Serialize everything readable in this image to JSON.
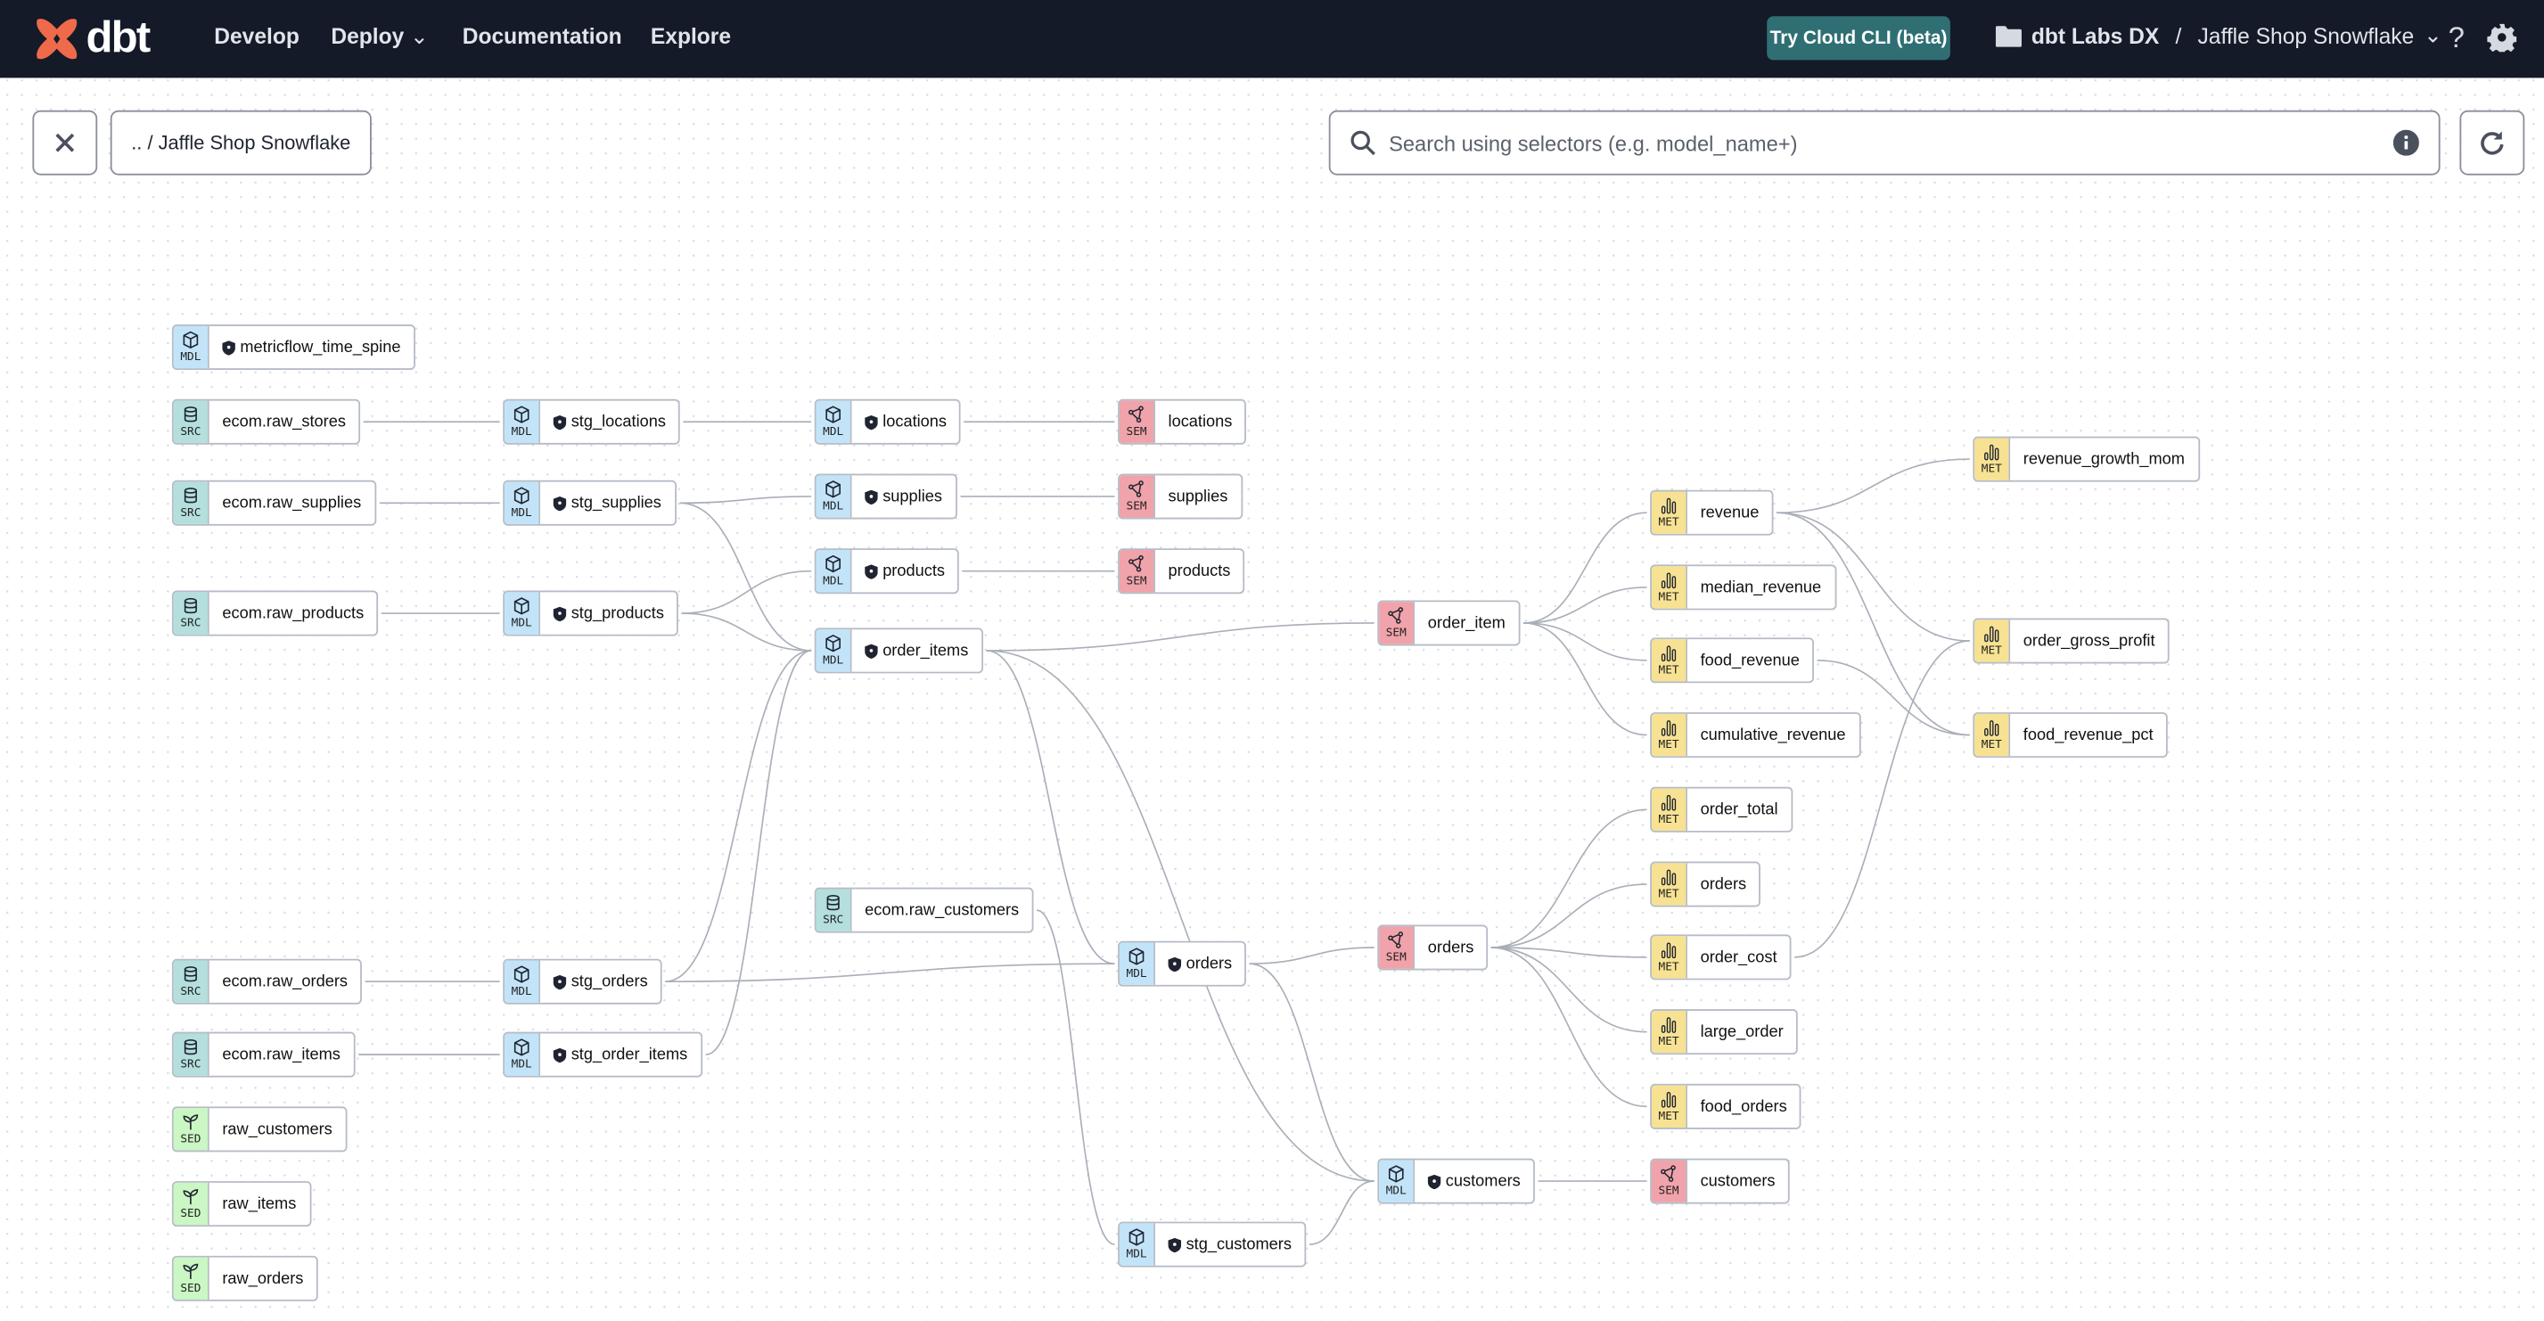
{
  "header": {
    "logo_text": "dbt",
    "nav": [
      "Develop",
      "Deploy",
      "Documentation",
      "Explore"
    ],
    "cli_button": "Try Cloud CLI (beta)",
    "account": "dbt Labs DX",
    "separator": "/",
    "project": "Jaffle Shop Snowflake",
    "icons": [
      "help-icon",
      "gear-icon"
    ]
  },
  "toolbar": {
    "breadcrumb": ".. / Jaffle Shop Snowflake",
    "search_placeholder": "Search using selectors (e.g. model_name+)"
  },
  "colors": {
    "SRC": "#b4dfdd",
    "MDL": "#c3e4f8",
    "SEM": "#f0a3aa",
    "MET": "#f7e293",
    "SED": "#caf7c3",
    "header": "#141a28",
    "cli": "#2f6f73",
    "accent": "#ee6a4b"
  },
  "nodes": [
    {
      "id": "metricflow_time_spine",
      "type": "MDL",
      "label": "metricflow_time_spine",
      "protected": true
    },
    {
      "id": "src_stores",
      "type": "SRC",
      "label": "ecom.raw_stores"
    },
    {
      "id": "src_supplies",
      "type": "SRC",
      "label": "ecom.raw_supplies"
    },
    {
      "id": "src_products",
      "type": "SRC",
      "label": "ecom.raw_products"
    },
    {
      "id": "src_orders",
      "type": "SRC",
      "label": "ecom.raw_orders"
    },
    {
      "id": "src_items",
      "type": "SRC",
      "label": "ecom.raw_items"
    },
    {
      "id": "seed_customers",
      "type": "SED",
      "label": "raw_customers"
    },
    {
      "id": "seed_items",
      "type": "SED",
      "label": "raw_items"
    },
    {
      "id": "seed_orders",
      "type": "SED",
      "label": "raw_orders"
    },
    {
      "id": "stg_locations",
      "type": "MDL",
      "label": "stg_locations",
      "protected": true
    },
    {
      "id": "stg_supplies",
      "type": "MDL",
      "label": "stg_supplies",
      "protected": true
    },
    {
      "id": "stg_products",
      "type": "MDL",
      "label": "stg_products",
      "protected": true
    },
    {
      "id": "stg_orders",
      "type": "MDL",
      "label": "stg_orders",
      "protected": true
    },
    {
      "id": "stg_order_items",
      "type": "MDL",
      "label": "stg_order_items",
      "protected": true
    },
    {
      "id": "locations",
      "type": "MDL",
      "label": "locations",
      "protected": true
    },
    {
      "id": "supplies",
      "type": "MDL",
      "label": "supplies",
      "protected": true
    },
    {
      "id": "products",
      "type": "MDL",
      "label": "products",
      "protected": true
    },
    {
      "id": "order_items",
      "type": "MDL",
      "label": "order_items",
      "protected": true
    },
    {
      "id": "src_customers",
      "type": "SRC",
      "label": "ecom.raw_customers"
    },
    {
      "id": "sem_locations",
      "type": "SEM",
      "label": "locations"
    },
    {
      "id": "sem_supplies",
      "type": "SEM",
      "label": "supplies"
    },
    {
      "id": "sem_products",
      "type": "SEM",
      "label": "products"
    },
    {
      "id": "orders",
      "type": "MDL",
      "label": "orders",
      "protected": true
    },
    {
      "id": "stg_customers",
      "type": "MDL",
      "label": "stg_customers",
      "protected": true
    },
    {
      "id": "sem_order_item",
      "type": "SEM",
      "label": "order_item"
    },
    {
      "id": "sem_orders",
      "type": "SEM",
      "label": "orders"
    },
    {
      "id": "customers",
      "type": "MDL",
      "label": "customers",
      "protected": true
    },
    {
      "id": "revenue",
      "type": "MET",
      "label": "revenue"
    },
    {
      "id": "median_revenue",
      "type": "MET",
      "label": "median_revenue"
    },
    {
      "id": "food_revenue",
      "type": "MET",
      "label": "food_revenue"
    },
    {
      "id": "cumulative_revenue",
      "type": "MET",
      "label": "cumulative_revenue"
    },
    {
      "id": "order_total",
      "type": "MET",
      "label": "order_total"
    },
    {
      "id": "met_orders",
      "type": "MET",
      "label": "orders"
    },
    {
      "id": "order_cost",
      "type": "MET",
      "label": "order_cost"
    },
    {
      "id": "large_order",
      "type": "MET",
      "label": "large_order"
    },
    {
      "id": "food_orders",
      "type": "MET",
      "label": "food_orders"
    },
    {
      "id": "sem_customers",
      "type": "SEM",
      "label": "customers"
    },
    {
      "id": "revenue_growth_mom",
      "type": "MET",
      "label": "revenue_growth_mom"
    },
    {
      "id": "order_gross_profit",
      "type": "MET",
      "label": "order_gross_profit"
    },
    {
      "id": "food_revenue_pct",
      "type": "MET",
      "label": "food_revenue_pct"
    }
  ],
  "edges": [
    [
      "src_stores",
      "stg_locations"
    ],
    [
      "stg_locations",
      "locations"
    ],
    [
      "locations",
      "sem_locations"
    ],
    [
      "src_supplies",
      "stg_supplies"
    ],
    [
      "stg_supplies",
      "supplies"
    ],
    [
      "stg_supplies",
      "order_items"
    ],
    [
      "supplies",
      "sem_supplies"
    ],
    [
      "src_products",
      "stg_products"
    ],
    [
      "stg_products",
      "products"
    ],
    [
      "stg_products",
      "order_items"
    ],
    [
      "products",
      "sem_products"
    ],
    [
      "src_orders",
      "stg_orders"
    ],
    [
      "stg_orders",
      "orders"
    ],
    [
      "stg_orders",
      "order_items"
    ],
    [
      "src_items",
      "stg_order_items"
    ],
    [
      "stg_order_items",
      "order_items"
    ],
    [
      "order_items",
      "sem_order_item"
    ],
    [
      "order_items",
      "orders"
    ],
    [
      "order_items",
      "customers"
    ],
    [
      "src_customers",
      "stg_customers"
    ],
    [
      "stg_customers",
      "customers"
    ],
    [
      "orders",
      "sem_orders"
    ],
    [
      "orders",
      "customers"
    ],
    [
      "customers",
      "sem_customers"
    ],
    [
      "sem_order_item",
      "revenue"
    ],
    [
      "sem_order_item",
      "median_revenue"
    ],
    [
      "sem_order_item",
      "food_revenue"
    ],
    [
      "sem_order_item",
      "cumulative_revenue"
    ],
    [
      "sem_orders",
      "order_total"
    ],
    [
      "sem_orders",
      "met_orders"
    ],
    [
      "sem_orders",
      "order_cost"
    ],
    [
      "sem_orders",
      "large_order"
    ],
    [
      "sem_orders",
      "food_orders"
    ],
    [
      "revenue",
      "revenue_growth_mom"
    ],
    [
      "revenue",
      "order_gross_profit"
    ],
    [
      "revenue",
      "food_revenue_pct"
    ],
    [
      "food_revenue",
      "food_revenue_pct"
    ],
    [
      "order_cost",
      "order_gross_profit"
    ]
  ]
}
